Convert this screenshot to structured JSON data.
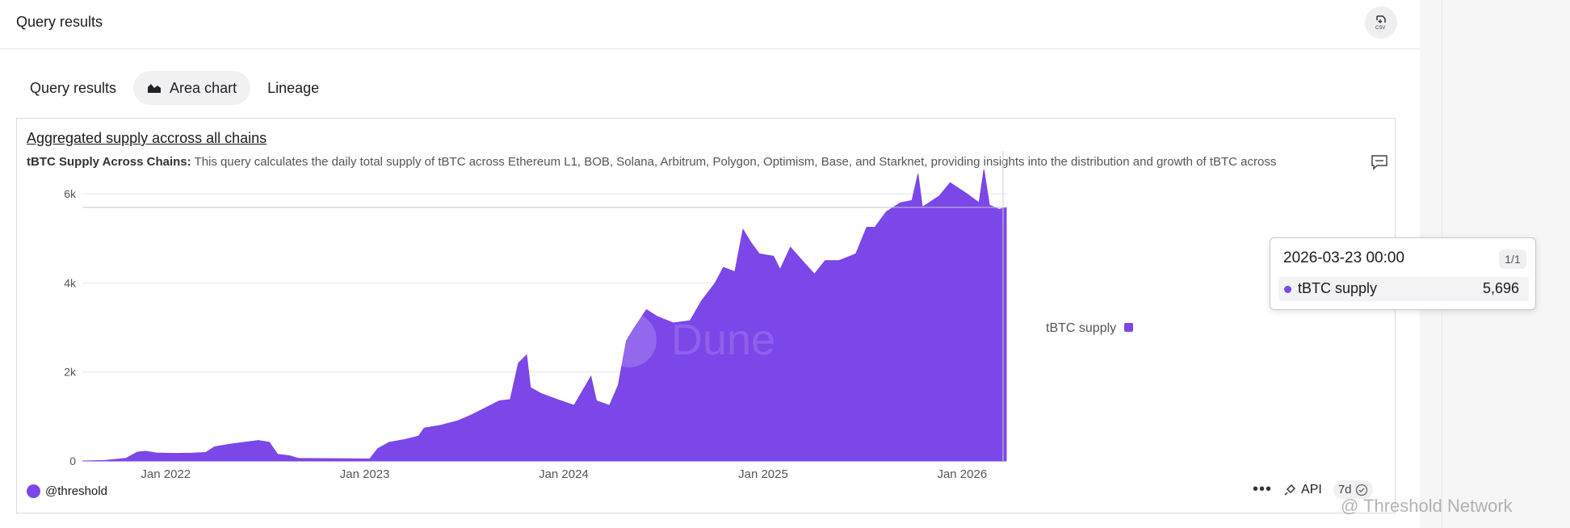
{
  "header": {
    "title": "Query results",
    "csv_icon": "download-csv-icon"
  },
  "tabs": [
    {
      "label": "Query results",
      "active": false
    },
    {
      "label": "Area chart",
      "active": true,
      "icon": "area-chart-icon"
    },
    {
      "label": "Lineage",
      "active": false
    }
  ],
  "card": {
    "title": "Aggregated supply accross all chains",
    "desc_bold": "tBTC Supply Across Chains:",
    "desc_text": " This query calculates the daily total supply of tBTC across Ethereum L1, BOB, Solana, Arbitrum, Polygon, Optimism, Base, and Starknet, providing insights into the distribution and growth of tBTC across"
  },
  "chart_data": {
    "type": "area",
    "title": "Aggregated supply accross all chains",
    "xlabel": "",
    "ylabel": "",
    "x_ticks": [
      "Jan 2022",
      "Jan 2023",
      "Jan 2024",
      "Jan 2025",
      "Jan 2026"
    ],
    "y_ticks": [
      "0",
      "2k",
      "4k",
      "6k"
    ],
    "ylim": [
      0,
      6600
    ],
    "xlim": [
      "2021-08-01",
      "2026-03-23"
    ],
    "grid": true,
    "legend": {
      "position": "right",
      "entries": [
        "tBTC supply"
      ]
    },
    "colors": {
      "series": "#7b47e8"
    },
    "series": [
      {
        "name": "tBTC supply",
        "points": [
          [
            "2021-08-01",
            0
          ],
          [
            "2021-09-10",
            10
          ],
          [
            "2021-10-20",
            60
          ],
          [
            "2021-11-10",
            200
          ],
          [
            "2021-11-25",
            220
          ],
          [
            "2021-12-15",
            180
          ],
          [
            "2022-01-20",
            170
          ],
          [
            "2022-02-20",
            175
          ],
          [
            "2022-03-15",
            190
          ],
          [
            "2022-04-01",
            320
          ],
          [
            "2022-05-01",
            380
          ],
          [
            "2022-06-01",
            430
          ],
          [
            "2022-06-20",
            460
          ],
          [
            "2022-07-10",
            420
          ],
          [
            "2022-07-25",
            150
          ],
          [
            "2022-08-15",
            120
          ],
          [
            "2022-09-01",
            60
          ],
          [
            "2022-10-15",
            55
          ],
          [
            "2022-12-01",
            50
          ],
          [
            "2023-01-10",
            45
          ],
          [
            "2023-01-25",
            280
          ],
          [
            "2023-02-15",
            420
          ],
          [
            "2023-03-15",
            480
          ],
          [
            "2023-04-10",
            560
          ],
          [
            "2023-04-20",
            740
          ],
          [
            "2023-05-20",
            800
          ],
          [
            "2023-06-20",
            900
          ],
          [
            "2023-07-15",
            1030
          ],
          [
            "2023-08-15",
            1220
          ],
          [
            "2023-09-05",
            1350
          ],
          [
            "2023-09-25",
            1380
          ],
          [
            "2023-10-10",
            2200
          ],
          [
            "2023-10-25",
            2380
          ],
          [
            "2023-11-01",
            1650
          ],
          [
            "2023-11-20",
            1520
          ],
          [
            "2023-12-20",
            1380
          ],
          [
            "2024-01-20",
            1250
          ],
          [
            "2024-02-01",
            1500
          ],
          [
            "2024-02-20",
            1900
          ],
          [
            "2024-03-01",
            1350
          ],
          [
            "2024-03-25",
            1250
          ],
          [
            "2024-04-10",
            1700
          ],
          [
            "2024-04-25",
            2700
          ],
          [
            "2024-05-10",
            3000
          ],
          [
            "2024-06-01",
            3400
          ],
          [
            "2024-06-20",
            3250
          ],
          [
            "2024-07-20",
            3100
          ],
          [
            "2024-08-20",
            3150
          ],
          [
            "2024-09-10",
            3600
          ],
          [
            "2024-10-05",
            4000
          ],
          [
            "2024-10-20",
            4350
          ],
          [
            "2024-11-10",
            4250
          ],
          [
            "2024-11-25",
            5200
          ],
          [
            "2024-12-10",
            4900
          ],
          [
            "2024-12-25",
            4650
          ],
          [
            "2025-01-20",
            4600
          ],
          [
            "2025-02-01",
            4300
          ],
          [
            "2025-02-20",
            4800
          ],
          [
            "2025-03-10",
            4550
          ],
          [
            "2025-04-05",
            4200
          ],
          [
            "2025-04-25",
            4500
          ],
          [
            "2025-05-20",
            4500
          ],
          [
            "2025-06-20",
            4650
          ],
          [
            "2025-07-10",
            5250
          ],
          [
            "2025-07-25",
            5250
          ],
          [
            "2025-08-15",
            5600
          ],
          [
            "2025-09-10",
            5800
          ],
          [
            "2025-10-01",
            5850
          ],
          [
            "2025-10-12",
            6450
          ],
          [
            "2025-10-20",
            5700
          ],
          [
            "2025-11-20",
            5950
          ],
          [
            "2025-12-10",
            6250
          ],
          [
            "2026-01-10",
            6000
          ],
          [
            "2026-02-01",
            5800
          ],
          [
            "2026-02-10",
            6550
          ],
          [
            "2026-02-20",
            5750
          ],
          [
            "2026-03-10",
            5650
          ],
          [
            "2026-03-23",
            5696
          ]
        ]
      }
    ]
  },
  "tooltip": {
    "date": "2026-03-23 00:00",
    "badge": "1/1",
    "label": "tBTC supply",
    "value": "5,696"
  },
  "legend_label": "tBTC supply",
  "footer": {
    "owner": "@threshold",
    "api_label": "API",
    "refresh_label": "7d"
  },
  "watermark": {
    "chart": "Dune",
    "overlay": "@ Threshold Network"
  }
}
